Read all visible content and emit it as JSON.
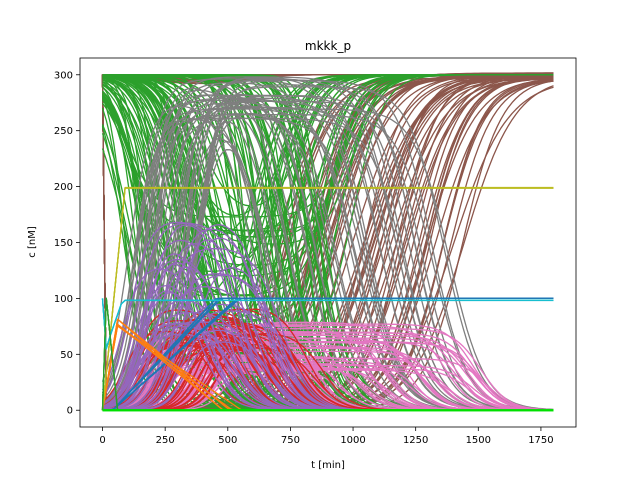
{
  "chart_data": {
    "type": "line",
    "title": "mkkk_p",
    "xlabel": "t [min]",
    "ylabel": "c [nM]",
    "xlim": [
      -90,
      1890
    ],
    "ylim": [
      -15,
      315
    ],
    "xticks": [
      0,
      250,
      500,
      750,
      1000,
      1250,
      1500,
      1750
    ],
    "yticks": [
      0,
      50,
      100,
      150,
      200,
      250,
      300
    ],
    "grid": false,
    "legend": "none",
    "x_range_of_traces": [
      0,
      1800
    ],
    "series": [
      {
        "color": "#8c564b",
        "family": "rise_from_zero_to_300",
        "count": 60,
        "t_mid_range": [
          650,
          1450
        ],
        "width_range": [
          70,
          110
        ],
        "shape": "sigmoid_up"
      },
      {
        "color": "#8c564b",
        "family": "flat_near_300",
        "count": 12,
        "base": 300,
        "dip": [
          0,
          8
        ],
        "shape": "shallow_dip"
      },
      {
        "color": "#2ca02c",
        "family": "fall_300_to_0",
        "count": 90,
        "t_mid_range": [
          80,
          900
        ],
        "width_range": [
          25,
          90
        ],
        "shape": "sigmoid_down"
      },
      {
        "color": "#2ca02c",
        "family": "recover_to_300",
        "count": 35,
        "t_mid_range": [
          600,
          1000
        ],
        "shape": "valley_then_rise"
      },
      {
        "color": "#7f7f7f",
        "family": "pulse_to_300",
        "count": 45,
        "rise_range": [
          100,
          400
        ],
        "fall_range": [
          600,
          1450
        ],
        "peak": [
          260,
          300
        ],
        "shape": "pulse"
      },
      {
        "color": "#e377c2",
        "family": "late_plateau",
        "count": 60,
        "peak_range": [
          35,
          80
        ],
        "fall_range": [
          700,
          1550
        ],
        "shape": "bump"
      },
      {
        "color": "#d62728",
        "family": "mid_bump",
        "count": 45,
        "peak_range": [
          55,
          95
        ],
        "center_range": [
          250,
          650
        ],
        "shape": "bump"
      },
      {
        "color": "#9467bd",
        "family": "early_bump",
        "count": 35,
        "peak_range": [
          60,
          180
        ],
        "center_range": [
          250,
          520
        ],
        "shape": "bump"
      },
      {
        "color": "#1f77b4",
        "family": "ramp_to_100",
        "count": 8,
        "end_time": [
          450,
          560
        ],
        "shape": "ramp"
      },
      {
        "color": "#ff7f0e",
        "family": "spike_then_decline",
        "count": 5,
        "peak": [
          75,
          85
        ],
        "end_time": [
          480,
          560
        ],
        "shape": "spike_decline"
      },
      {
        "color": "#bcbd22",
        "family": "rise_to_200",
        "count": 4,
        "level": 200,
        "t_reach": 90,
        "shape": "ramp_flat"
      },
      {
        "color": "#17becf",
        "family": "step_to_100",
        "count": 4,
        "level": 99,
        "t_reach": 80,
        "shape": "step_flat"
      },
      {
        "color": "#2ca02c",
        "family": "early_spike_to_zero",
        "count": 4,
        "peak": 100,
        "end_time": 60,
        "shape": "early_spike"
      },
      {
        "color": "#00e000",
        "family": "near_zero_baseline",
        "count": 3,
        "level": 0,
        "shape": "flat"
      }
    ]
  }
}
